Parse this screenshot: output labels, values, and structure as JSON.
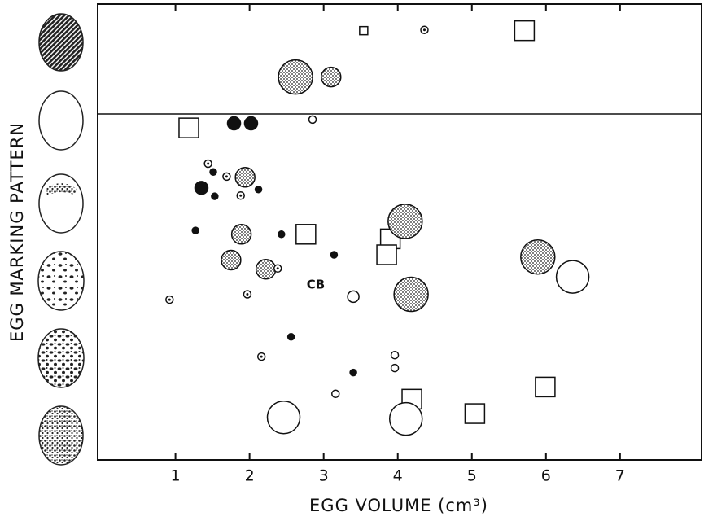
{
  "chart_data": {
    "type": "scatter",
    "x_label": "EGG VOLUME (cm³)",
    "y_label": "EGG MARKING PATTERN",
    "xlim": [
      -0.05,
      8.1
    ],
    "xticks": [
      1,
      2,
      3,
      4,
      5,
      6,
      7
    ],
    "ylim": [
      0,
      6
    ],
    "annotations": [
      "CB"
    ],
    "series": [
      {
        "marker": "square-open",
        "size": 12,
        "color": "#111",
        "x": [
          5.71,
          1.18,
          2.76,
          3.9,
          3.85,
          5.99,
          4.19,
          5.04
        ],
        "values": [
          5.65,
          4.37,
          2.97,
          2.91,
          2.7,
          0.96,
          0.8,
          0.61
        ]
      },
      {
        "marker": "square-open",
        "size": 5,
        "color": "#111",
        "x": [
          3.54
        ],
        "values": [
          5.65
        ]
      },
      {
        "marker": "circle-stipple",
        "size": 21,
        "color": "#111",
        "x": [
          2.62,
          4.1,
          5.89,
          4.18
        ],
        "values": [
          5.04,
          3.14,
          2.67,
          2.18
        ]
      },
      {
        "marker": "circle-stipple",
        "size": 12,
        "color": "#111",
        "x": [
          1.89,
          1.75,
          2.22,
          3.1,
          1.94
        ],
        "values": [
          2.97,
          2.63,
          2.51,
          5.04,
          3.72
        ]
      },
      {
        "marker": "circle-open",
        "size": 20,
        "color": "#111",
        "x": [
          6.36,
          2.46,
          4.11
        ],
        "values": [
          2.41,
          0.56,
          0.54
        ]
      },
      {
        "marker": "circle-filled",
        "size": 4,
        "color": "#111",
        "x": [
          1.51,
          1.53,
          2.12,
          1.27,
          2.43,
          3.14,
          2.56,
          3.4
        ],
        "values": [
          3.79,
          3.47,
          3.56,
          3.02,
          2.97,
          2.7,
          1.62,
          1.15
        ]
      },
      {
        "marker": "circle-filled",
        "size": 8,
        "color": "#111",
        "x": [
          1.79,
          2.02,
          1.35
        ],
        "values": [
          4.43,
          4.43,
          3.58
        ]
      },
      {
        "marker": "circle-dot",
        "size": 4.5,
        "color": "#111",
        "x": [
          4.36,
          1.44,
          1.69,
          1.88,
          0.92,
          1.97,
          2.16,
          2.38
        ],
        "values": [
          5.66,
          3.9,
          3.73,
          3.48,
          2.11,
          2.18,
          1.36,
          2.52
        ]
      },
      {
        "marker": "circle-open",
        "size": 4.5,
        "color": "#111",
        "x": [
          2.85,
          3.96,
          3.96,
          3.16
        ],
        "values": [
          4.48,
          1.38,
          1.21,
          0.87
        ]
      },
      {
        "marker": "circle-open",
        "size": 7,
        "color": "#111",
        "x": [
          3.4
        ],
        "values": [
          2.15
        ]
      }
    ]
  }
}
